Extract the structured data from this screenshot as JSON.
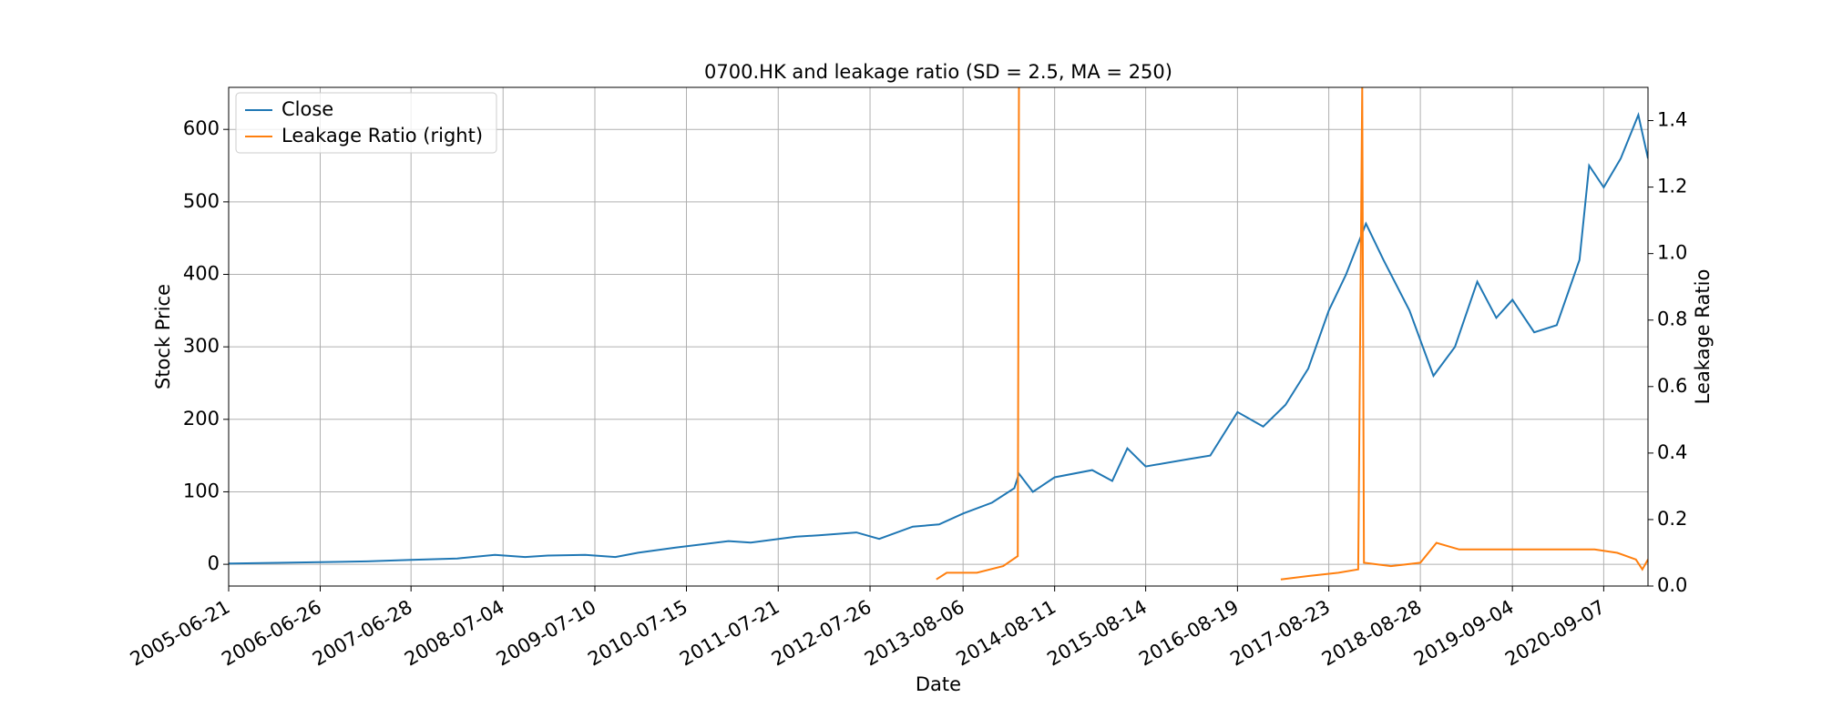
{
  "chart_data": {
    "type": "line",
    "title": "0700.HK and leakage ratio (SD = 2.5, MA = 250)",
    "x_label": "Date",
    "y_label": "Stock Price",
    "y2_label": "Leakage Ratio",
    "xlim": [
      "2005-06-21",
      "2021-03-05"
    ],
    "xticks": [
      "2005-06-21",
      "2006-06-26",
      "2007-06-28",
      "2008-07-04",
      "2009-07-10",
      "2010-07-15",
      "2011-07-21",
      "2012-07-26",
      "2013-08-06",
      "2014-08-11",
      "2015-08-14",
      "2016-08-19",
      "2017-08-23",
      "2018-08-28",
      "2019-09-04",
      "2020-09-07"
    ],
    "ylim": [
      -30,
      658
    ],
    "yticks": [
      0,
      100,
      200,
      300,
      400,
      500,
      600
    ],
    "y2lim": [
      0,
      1.5
    ],
    "y2ticks": [
      {
        "value": 0,
        "label": "0.0"
      },
      0.2,
      0.4,
      0.6,
      0.8,
      {
        "value": 1,
        "label": "1.0"
      },
      1.2,
      1.4
    ],
    "grid": true,
    "legend": "upper-left",
    "series": [
      {
        "name": "Close",
        "color": "#1f77b4",
        "x": [
          "2005-06-21",
          "2006-01-01",
          "2006-06-26",
          "2007-01-01",
          "2007-06-28",
          "2008-01-01",
          "2008-06-01",
          "2008-10-01",
          "2009-01-01",
          "2009-06-01",
          "2009-10-01",
          "2010-01-01",
          "2010-06-01",
          "2011-01-01",
          "2011-04-01",
          "2011-10-01",
          "2012-01-01",
          "2012-06-01",
          "2012-09-01",
          "2013-01-15",
          "2013-05-01",
          "2013-08-06",
          "2013-12-01",
          "2014-03-01",
          "2014-03-20",
          "2014-05-15",
          "2014-08-11",
          "2015-01-10",
          "2015-04-01",
          "2015-06-01",
          "2015-08-14",
          "2016-02-01",
          "2016-05-01",
          "2016-08-19",
          "2016-12-01",
          "2017-03-01",
          "2017-06-01",
          "2017-08-23",
          "2017-11-01",
          "2018-01-20",
          "2018-04-01",
          "2018-07-15",
          "2018-10-20",
          "2019-01-15",
          "2019-04-15",
          "2019-07-01",
          "2019-09-04",
          "2019-12-01",
          "2020-03-01",
          "2020-06-01",
          "2020-07-10",
          "2020-09-07",
          "2020-11-15",
          "2021-01-25",
          "2021-03-05"
        ],
        "values": [
          1,
          2,
          3,
          4,
          6,
          8,
          13,
          10,
          12,
          13,
          10,
          16,
          23,
          32,
          30,
          38,
          40,
          44,
          35,
          52,
          55,
          70,
          85,
          105,
          125,
          100,
          120,
          130,
          115,
          160,
          135,
          145,
          150,
          210,
          190,
          220,
          270,
          350,
          400,
          470,
          420,
          350,
          260,
          300,
          390,
          340,
          365,
          320,
          330,
          420,
          550,
          520,
          560,
          620,
          560
        ]
      },
      {
        "name": "Leakage Ratio (right)",
        "color": "#ff7f0e",
        "axis": "y2",
        "x": [
          "2013-04-20",
          "2013-06-01",
          "2013-10-01",
          "2014-01-15",
          "2014-03-15",
          "2014-03-20",
          "2016-01-01",
          "2017-02-10",
          "2017-06-01",
          "2017-10-01",
          "2017-12-20",
          "2018-01-05",
          "2018-01-12",
          "2018-05-01",
          "2018-08-28",
          "2018-11-01",
          "2019-02-01",
          "2019-09-04",
          "2020-03-01",
          "2020-08-01",
          "2020-11-01",
          "2021-01-15",
          "2021-02-10",
          "2021-03-05"
        ],
        "values": [
          0.02,
          0.04,
          0.04,
          0.06,
          0.09,
          1.5,
          null,
          0.02,
          0.03,
          0.04,
          0.05,
          1.5,
          0.07,
          0.06,
          0.07,
          0.13,
          0.11,
          0.11,
          0.11,
          0.11,
          0.1,
          0.08,
          0.05,
          0.08
        ]
      }
    ]
  }
}
